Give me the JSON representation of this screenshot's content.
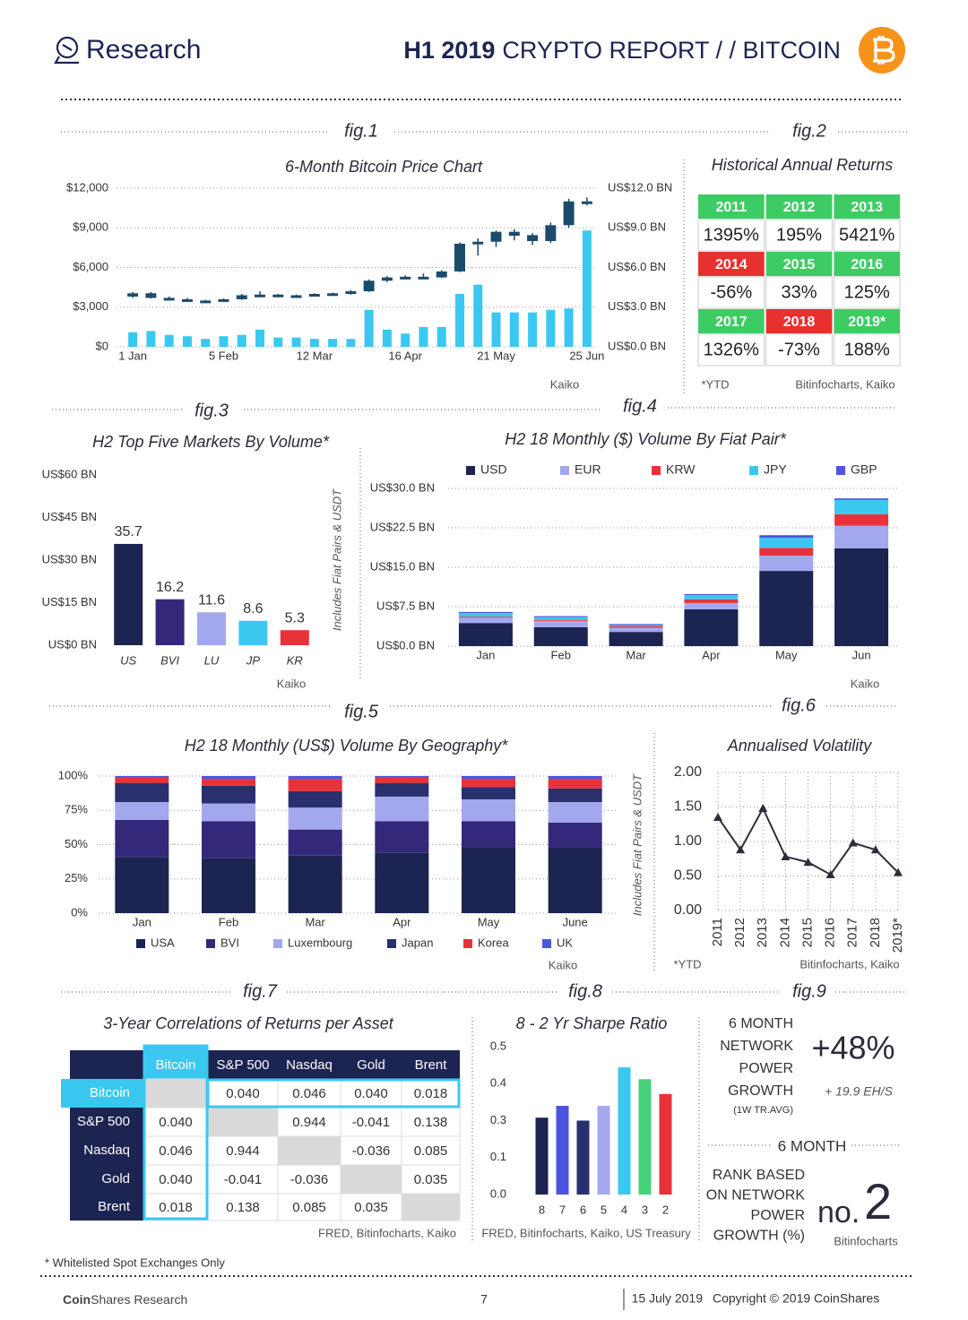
{
  "header": {
    "brand": "Research",
    "report_year": "H1 2019",
    "report_title": "CRYPTO REPORT / / BITCOIN"
  },
  "chart_data": [
    {
      "type": "candlestick",
      "fig": "fig.1",
      "title": "6-Month Bitcoin Price Chart",
      "categories": [
        "1 Jan",
        null,
        null,
        null,
        null,
        "5 Feb",
        null,
        null,
        null,
        null,
        "12 Mar",
        null,
        null,
        null,
        null,
        "16 Apr",
        null,
        null,
        null,
        null,
        "21 May",
        null,
        null,
        null,
        null,
        "25 Jun"
      ],
      "series": [
        {
          "type": "candlestick",
          "color": "#1b4b6b",
          "open": [
            3800,
            4050,
            3700,
            3600,
            3500,
            3450,
            3600,
            3900,
            3950,
            3850,
            3900,
            4000,
            4050,
            4200,
            5000,
            5250,
            5300,
            5250,
            5700,
            7800,
            7950,
            8700,
            8450,
            8000,
            9200,
            11000
          ],
          "high": [
            4150,
            4150,
            3800,
            3700,
            3550,
            3650,
            4000,
            4200,
            4000,
            3950,
            4050,
            4100,
            4300,
            5100,
            5350,
            5400,
            5550,
            5800,
            7900,
            8200,
            8800,
            8900,
            8600,
            9400,
            11200,
            11300
          ],
          "low": [
            3700,
            3650,
            3550,
            3500,
            3400,
            3400,
            3550,
            3850,
            3750,
            3800,
            3850,
            3900,
            3950,
            4150,
            4900,
            5100,
            5200,
            5200,
            5650,
            6900,
            7550,
            8050,
            7700,
            7850,
            9000,
            10700
          ],
          "close": [
            4050,
            3700,
            3600,
            3550,
            3450,
            3600,
            3900,
            3950,
            3850,
            3900,
            4000,
            4050,
            4200,
            5000,
            5250,
            5300,
            5250,
            5700,
            7800,
            7950,
            8700,
            8400,
            8000,
            9200,
            11000,
            10800
          ]
        },
        {
          "type": "bar",
          "axis": "y2",
          "color": "#3ac8f0",
          "values": [
            1.1,
            1.2,
            0.9,
            0.8,
            0.6,
            0.8,
            0.9,
            1.3,
            0.7,
            0.7,
            0.6,
            0.6,
            0.6,
            2.8,
            1.3,
            1.0,
            1.5,
            1.5,
            4.0,
            4.7,
            2.6,
            2.6,
            2.6,
            2.8,
            2.9,
            8.8
          ]
        }
      ],
      "ylim": [
        0,
        12000
      ],
      "yticks": [
        {
          "value": 0,
          "label": "$0"
        },
        {
          "value": 3000,
          "label": "$3,000"
        },
        {
          "value": 6000,
          "label": "$6,000"
        },
        {
          "value": 9000,
          "label": "$9,000"
        },
        {
          "value": 12000,
          "label": "$12,000"
        }
      ],
      "y2lim": [
        0,
        12
      ],
      "y2ticks": [
        {
          "value": 0,
          "label": "US$0.0 BN"
        },
        {
          "value": 3,
          "label": "US$3.0 BN"
        },
        {
          "value": 6,
          "label": "US$6.0 BN"
        },
        {
          "value": 9,
          "label": "US$9.0 BN"
        },
        {
          "value": 12,
          "label": "US$12.0 BN"
        }
      ],
      "grid": true,
      "source": "Kaiko"
    },
    {
      "type": "bar",
      "fig": "fig.3",
      "title": "H2 Top Five Markets By Volume*",
      "categories": [
        "US",
        "BVI",
        "LU",
        "JP",
        "KR"
      ],
      "values": [
        35.7,
        16.2,
        11.6,
        8.6,
        5.3
      ],
      "colors": [
        "#1c2452",
        "#34287a",
        "#a3a8ee",
        "#3ac8f0",
        "#e8323a"
      ],
      "ylim": [
        0,
        60
      ],
      "yticks": [
        {
          "value": 0,
          "label": "US$0 BN"
        },
        {
          "value": 15,
          "label": "US$15 BN"
        },
        {
          "value": 30,
          "label": "US$30 BN"
        },
        {
          "value": 45,
          "label": "US$45 BN"
        },
        {
          "value": 60,
          "label": "US$60 BN"
        }
      ],
      "grid": false,
      "data_labels": true,
      "side_note": "Includes Fiat Pairs & USDT",
      "source": "Kaiko"
    },
    {
      "type": "stacked_bar",
      "fig": "fig.4",
      "title": "H2 18 Monthly ($) Volume By Fiat Pair*",
      "categories": [
        "Jan",
        "Feb",
        "Mar",
        "Apr",
        "May",
        "Jun"
      ],
      "series": [
        {
          "name": "USD",
          "color": "#1c2452",
          "values": [
            4.4,
            3.6,
            2.7,
            7.0,
            14.3,
            18.6
          ]
        },
        {
          "name": "EUR",
          "color": "#a3a8ee",
          "values": [
            1.0,
            1.2,
            0.8,
            1.2,
            2.9,
            4.3
          ]
        },
        {
          "name": "KRW",
          "color": "#e8323a",
          "values": [
            0.2,
            0.2,
            0.3,
            0.7,
            1.5,
            2.2
          ]
        },
        {
          "name": "JPY",
          "color": "#3ac8f0",
          "values": [
            0.7,
            0.5,
            0.2,
            0.8,
            1.9,
            2.7
          ]
        },
        {
          "name": "GBP",
          "color": "#4d55e0",
          "values": [
            0.2,
            0.2,
            0.2,
            0.2,
            0.5,
            0.3
          ]
        }
      ],
      "ylim": [
        0,
        30
      ],
      "yticks": [
        {
          "value": 0,
          "label": "US$0.0 BN"
        },
        {
          "value": 7.5,
          "label": "US$7.5 BN"
        },
        {
          "value": 15,
          "label": "US$15.0 BN"
        },
        {
          "value": 22.5,
          "label": "US$22.5 BN"
        },
        {
          "value": 30,
          "label": "US$30.0 BN"
        }
      ],
      "grid": true,
      "legend": "top",
      "source": "Kaiko"
    },
    {
      "type": "stacked_bar",
      "fig": "fig.5",
      "title": "H2 18 Monthly (US$) Volume By Geography*",
      "categories": [
        "Jan",
        "Feb",
        "Mar",
        "Apr",
        "May",
        "June"
      ],
      "series": [
        {
          "name": "USA",
          "color": "#1c2452",
          "values": [
            41,
            40,
            42,
            44,
            48,
            48
          ]
        },
        {
          "name": "BVI",
          "color": "#34287a",
          "values": [
            27,
            27,
            19,
            23,
            19,
            18
          ]
        },
        {
          "name": "Luxembourg",
          "color": "#a3a8ee",
          "values": [
            13,
            13,
            16,
            18,
            16,
            15
          ]
        },
        {
          "name": "Japan",
          "color": "#2a2f6e",
          "values": [
            14,
            13,
            12,
            10,
            9,
            10
          ]
        },
        {
          "name": "Korea",
          "color": "#e8323a",
          "values": [
            4,
            5,
            9,
            4,
            6,
            7
          ]
        },
        {
          "name": "UK",
          "color": "#4d55e0",
          "values": [
            1,
            2,
            2,
            1,
            2,
            2
          ]
        }
      ],
      "ylim": [
        0,
        100
      ],
      "yticks": [
        {
          "value": 0,
          "label": "0%"
        },
        {
          "value": 25,
          "label": "25%"
        },
        {
          "value": 50,
          "label": "50%"
        },
        {
          "value": 75,
          "label": "75%"
        },
        {
          "value": 100,
          "label": "100%"
        }
      ],
      "grid": true,
      "legend": "bottom",
      "side_note": "Includes Fiat Pairs & USDT",
      "source": "Kaiko"
    },
    {
      "type": "line",
      "fig": "fig.6",
      "title": "Annualised Volatility",
      "categories": [
        "2011",
        "2012",
        "2013",
        "2014",
        "2015",
        "2016",
        "2017",
        "2018",
        "2019*"
      ],
      "values": [
        1.35,
        0.88,
        1.48,
        0.78,
        0.7,
        0.52,
        0.98,
        0.88,
        0.55
      ],
      "color": "#2b2f3a",
      "ylim": [
        0,
        2
      ],
      "yticks": [
        {
          "value": 0,
          "label": "0.00"
        },
        {
          "value": 0.5,
          "label": "0.50"
        },
        {
          "value": 1,
          "label": "1.00"
        },
        {
          "value": 1.5,
          "label": "1.50"
        },
        {
          "value": 2,
          "label": "2.00"
        }
      ],
      "grid": true,
      "note": "*YTD",
      "source": "Bitinfocharts, Kaiko"
    },
    {
      "type": "bar",
      "fig": "fig.8",
      "title": "8 - 2 Yr Sharpe Ratio",
      "categories": [
        "8",
        "7",
        "6",
        "5",
        "4",
        "3",
        "2"
      ],
      "values": [
        0.26,
        0.3,
        0.25,
        0.3,
        0.43,
        0.39,
        0.34
      ],
      "colors": [
        "#1c2452",
        "#4d55e0",
        "#2a2f6e",
        "#a3a8ee",
        "#3ac8f0",
        "#45d37a",
        "#e8323a"
      ],
      "ylim": [
        0,
        0.5
      ],
      "yticks": [
        {
          "value": 0,
          "label": "0.0"
        },
        {
          "value": 0.125,
          "label": "0.1"
        },
        {
          "value": 0.25,
          "label": "0.3"
        },
        {
          "value": 0.375,
          "label": "0.4"
        },
        {
          "value": 0.5,
          "label": "0.5"
        }
      ],
      "grid": false,
      "data_labels": false,
      "source": "FRED, Bitinfocharts, Kaiko, US Treasury"
    }
  ],
  "returns_table": {
    "fig": "fig.2",
    "title": "Historical Annual Returns",
    "cells": [
      {
        "year": "2011",
        "value": "1395%",
        "color": "#3dcc63"
      },
      {
        "year": "2012",
        "value": "195%",
        "color": "#3dcc63"
      },
      {
        "year": "2013",
        "value": "5421%",
        "color": "#3dcc63"
      },
      {
        "year": "2014",
        "value": "-56%",
        "color": "#e8312f"
      },
      {
        "year": "2015",
        "value": "33%",
        "color": "#3dcc63"
      },
      {
        "year": "2016",
        "value": "125%",
        "color": "#3dcc63"
      },
      {
        "year": "2017",
        "value": "1326%",
        "color": "#3dcc63"
      },
      {
        "year": "2018",
        "value": "-73%",
        "color": "#e8312f"
      },
      {
        "year": "2019*",
        "value": "188%",
        "color": "#3dcc63"
      }
    ],
    "note": "*YTD",
    "source": "Bitinfocharts, Kaiko"
  },
  "correlation_table": {
    "fig": "fig.7",
    "title": "3-Year Correlations of Returns per Asset",
    "columns": [
      "Bitcoin",
      "S&P 500",
      "Nasdaq",
      "Gold",
      "Brent"
    ],
    "rows": [
      {
        "label": "Bitcoin",
        "values": [
          null,
          "0.040",
          "0.046",
          "0.040",
          "0.018"
        ]
      },
      {
        "label": "S&P 500",
        "values": [
          "0.040",
          null,
          "0.944",
          "-0.041",
          "0.138"
        ]
      },
      {
        "label": "Nasdaq",
        "values": [
          "0.046",
          "0.944",
          null,
          "-0.036",
          "0.085"
        ]
      },
      {
        "label": "Gold",
        "values": [
          "0.040",
          "-0.041",
          "-0.036",
          null,
          "0.035"
        ]
      },
      {
        "label": "Brent",
        "values": [
          "0.018",
          "0.138",
          "0.085",
          "0.035",
          null
        ]
      }
    ],
    "source": "FRED, Bitinfocharts, Kaiko"
  },
  "network_power": {
    "fig": "fig.9",
    "growth_label": [
      "6 MONTH",
      "NETWORK",
      "POWER",
      "GROWTH"
    ],
    "growth_sub": "(1W TR.AVG)",
    "growth_value": "+48%",
    "hashrate": "+ 19.9 EH/S",
    "rank_heading": "6 MONTH",
    "rank_label": [
      "RANK BASED",
      "ON NETWORK",
      "POWER",
      "GROWTH (%)"
    ],
    "rank_prefix": "no.",
    "rank_value": "2",
    "source": "Bitinfocharts"
  },
  "footer": {
    "note": "* Whitelisted Spot Exchanges Only",
    "brand_bold": "Coin",
    "brand_rest": "Shares Research",
    "page": "7",
    "date": "15 July 2019",
    "copyright": "Copyright © 2019 CoinShares"
  }
}
